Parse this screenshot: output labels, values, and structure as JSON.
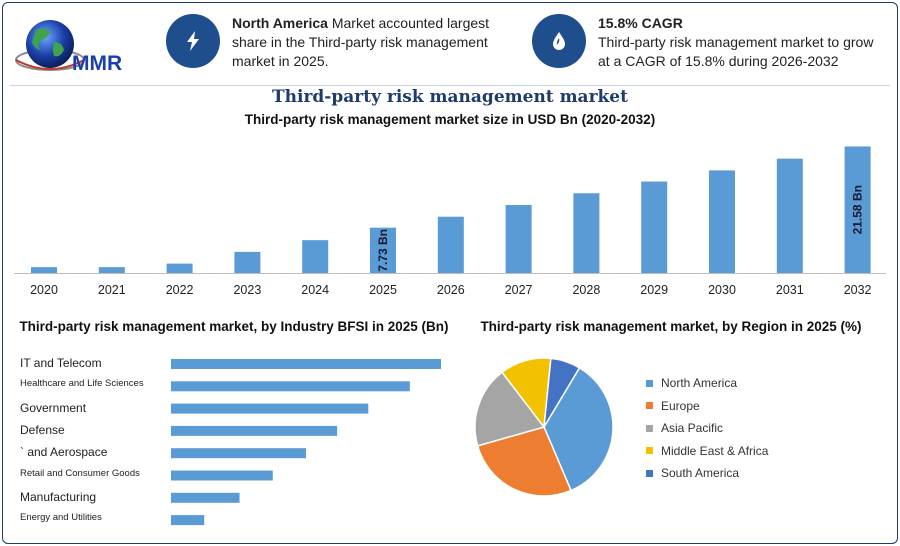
{
  "logo": {
    "text": "MMR"
  },
  "highlights": [
    {
      "icon": "lightning-icon",
      "bold": "North America",
      "text": " Market accounted largest share in the Third-party risk management market in 2025."
    },
    {
      "icon": "leaf-drop-icon",
      "bold": "15.8% CAGR",
      "text": "Third-party risk management market to grow at a CAGR of 15.8% during 2026-2032"
    }
  ],
  "colors": {
    "bar": "#5b9bd5",
    "accent": "#1f4e8c",
    "title": "#1f3a6b"
  },
  "chart_data": [
    {
      "type": "bar",
      "title": "Third-party risk management market",
      "subtitle": "Third-party risk management market size in USD Bn (2020-2032)",
      "categories": [
        "2020",
        "2021",
        "2022",
        "2023",
        "2024",
        "2025",
        "2026",
        "2027",
        "2028",
        "2029",
        "2030",
        "2031",
        "2032"
      ],
      "values": [
        1.0,
        1.0,
        1.6,
        3.6,
        5.6,
        7.73,
        9.6,
        11.6,
        13.6,
        15.6,
        17.5,
        19.5,
        21.58
      ],
      "data_labels": [
        {
          "index": 5,
          "text": "7.73 Bn"
        },
        {
          "index": 12,
          "text": "21.58 Bn"
        }
      ],
      "ylim": [
        0,
        22
      ]
    },
    {
      "type": "bar",
      "orientation": "horizontal",
      "title": "Third-party risk management market, by Industry BFSI in 2025 (Bn)",
      "categories": [
        "IT and Telecom",
        "Healthcare and Life Sciences",
        "Government",
        "Defense",
        "` and Aerospace",
        "Retail and Consumer Goods",
        "Manufacturing",
        "Energy and Utilities"
      ],
      "values": [
        2.6,
        2.3,
        1.9,
        1.6,
        1.3,
        0.98,
        0.66,
        0.32
      ],
      "xlim": [
        0,
        2.6
      ]
    },
    {
      "type": "pie",
      "title": "Third-party risk management market, by Region in 2025 (%)",
      "categories": [
        "North America",
        "Europe",
        "Asia Pacific",
        "Middle East & Africa",
        "South America"
      ],
      "values": [
        35,
        27,
        19,
        12,
        7
      ],
      "colors": [
        "#5b9bd5",
        "#ed7d31",
        "#a5a5a5",
        "#f2c200",
        "#4472c4"
      ],
      "legend": "right"
    }
  ]
}
